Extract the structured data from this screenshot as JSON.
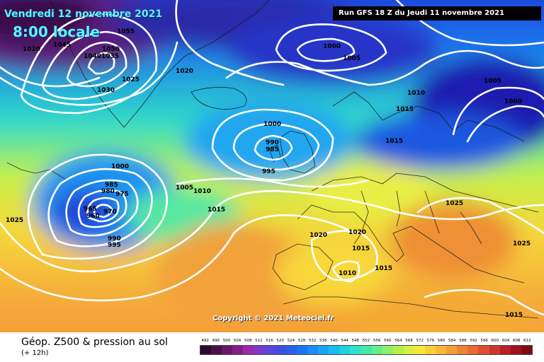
{
  "header": {
    "date": "Vendredi 12 novembre 2021",
    "local_time": "8:00 locale",
    "run": "Run GFS 18 Z du Jeudi 11 novembre 2021"
  },
  "map": {
    "copyright": "Copyright © 2021 Meteociel.fr",
    "isobar_labels": [
      "1055",
      "1020",
      "1045",
      "1050",
      "1040",
      "1035",
      "1030",
      "1025",
      "1020",
      "1000",
      "1005",
      "1010",
      "1015",
      "1005",
      "1000",
      "1000",
      "990",
      "985",
      "995",
      "1015",
      "1000",
      "985",
      "980",
      "975",
      "965",
      "960",
      "970",
      "990",
      "995",
      "1005",
      "1010",
      "1015",
      "1020",
      "1020",
      "1025",
      "1025",
      "1015",
      "1010",
      "1015",
      "1025",
      "1015"
    ]
  },
  "legend": {
    "title": "Géop. Z500 & pression au sol",
    "subtitle": "(+ 12h)",
    "scale_values": [
      "492",
      "496",
      "500",
      "504",
      "508",
      "512",
      "516",
      "520",
      "524",
      "528",
      "532",
      "536",
      "540",
      "544",
      "548",
      "552",
      "556",
      "560",
      "564",
      "568",
      "572",
      "576",
      "580",
      "584",
      "588",
      "592",
      "596",
      "600",
      "604",
      "608",
      "612"
    ],
    "scale_colors": [
      "#2a0a2e",
      "#4a1048",
      "#6a1766",
      "#851e88",
      "#9a2aa8",
      "#7a3ac8",
      "#5a45d8",
      "#3d4fe0",
      "#2b5fe8",
      "#1d74ee",
      "#1a8cf3",
      "#18a4f5",
      "#18bcf0",
      "#1ed2e2",
      "#2ce2c8",
      "#45e8a8",
      "#66ee88",
      "#8cf06a",
      "#b4f050",
      "#d8f040",
      "#f2ea38",
      "#f8d038",
      "#f8b838",
      "#f49e38",
      "#ee8438",
      "#e66a34",
      "#dc5030",
      "#cc362c",
      "#b82026",
      "#a01020",
      "#800a16"
    ]
  }
}
